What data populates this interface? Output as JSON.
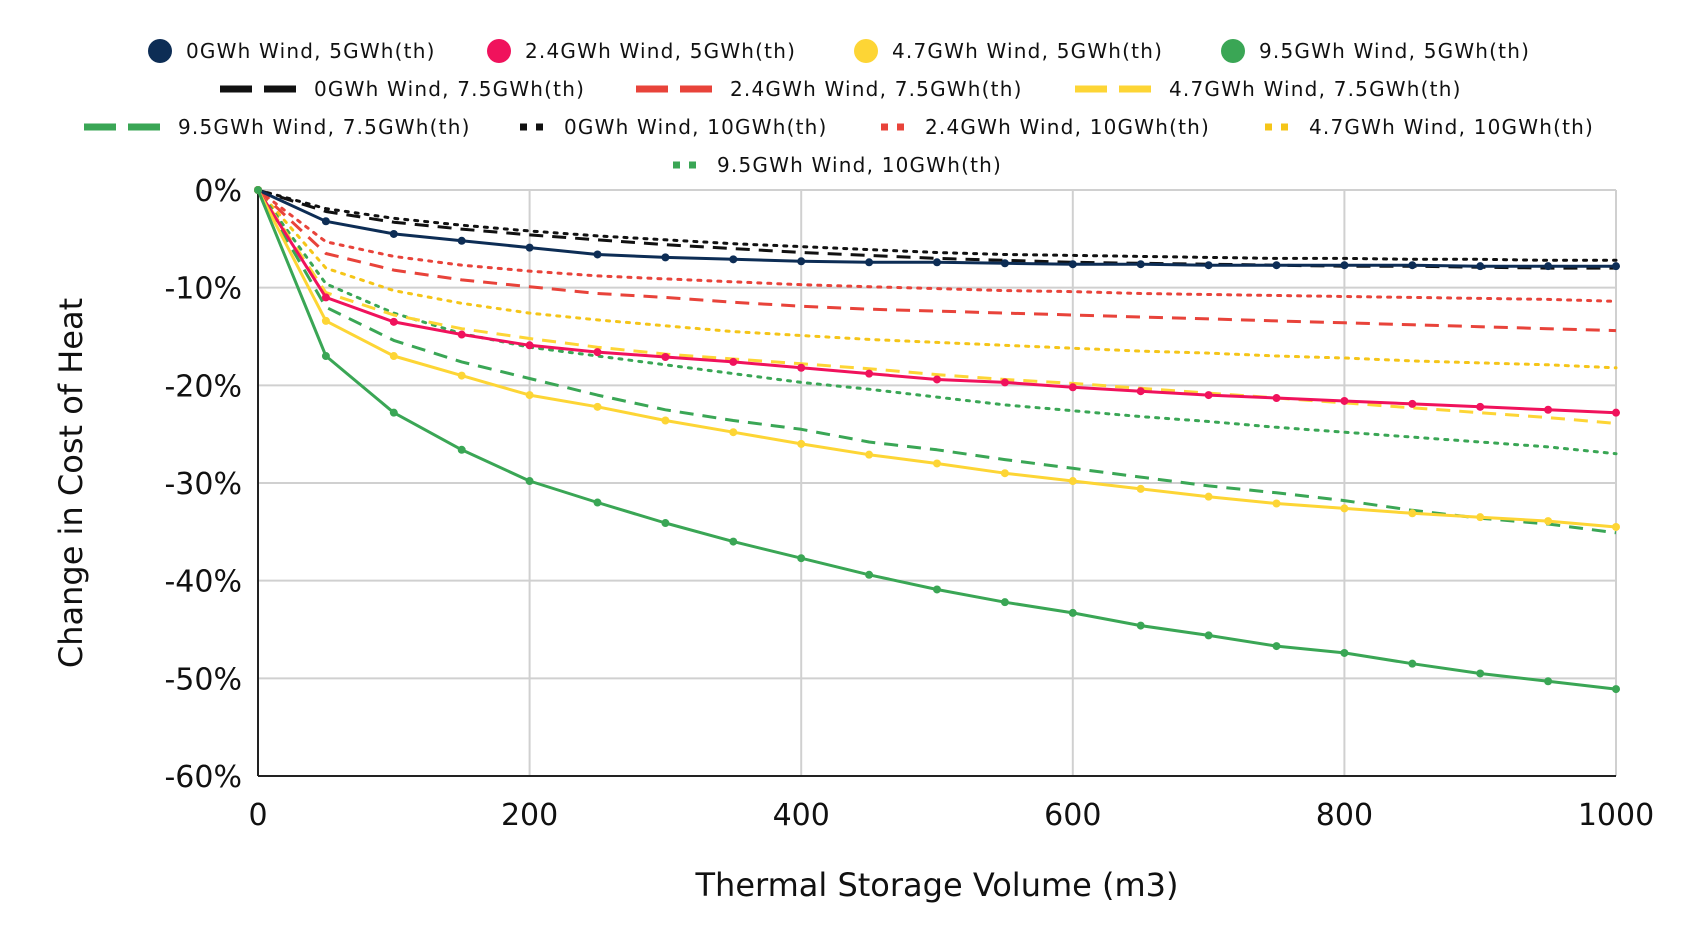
{
  "chart_data": {
    "type": "line",
    "title": "",
    "xlabel": "Thermal Storage Volume (m3)",
    "ylabel": "Change in Cost of Heat",
    "xlim": [
      0,
      1000
    ],
    "ylim": [
      -60,
      0
    ],
    "x_ticks": [
      0,
      200,
      400,
      600,
      800,
      1000
    ],
    "x_tick_labels": [
      "0",
      "200",
      "400",
      "600",
      "800",
      "1000"
    ],
    "y_ticks": [
      0,
      -10,
      -20,
      -30,
      -40,
      -50,
      -60
    ],
    "y_tick_labels": [
      "0%",
      "-10%",
      "-20%",
      "-30%",
      "-40%",
      "-50%",
      "-60%"
    ],
    "grid": true,
    "legend_position": "top",
    "x": [
      0,
      50,
      100,
      150,
      200,
      250,
      300,
      350,
      400,
      450,
      500,
      550,
      600,
      650,
      700,
      750,
      800,
      850,
      900,
      950,
      1000
    ],
    "series": [
      {
        "name": "0GWh Wind, 5GWh(th)",
        "color": "#0d2d55",
        "style": "solid-markers",
        "values": [
          0,
          -3.2,
          -4.5,
          -5.2,
          -5.9,
          -6.6,
          -6.9,
          -7.1,
          -7.3,
          -7.4,
          -7.4,
          -7.5,
          -7.6,
          -7.6,
          -7.7,
          -7.7,
          -7.7,
          -7.7,
          -7.8,
          -7.8,
          -7.8
        ]
      },
      {
        "name": "2.4GWh Wind, 5GWh(th)",
        "color": "#f0125c",
        "style": "solid-markers",
        "values": [
          0,
          -11.0,
          -13.5,
          -14.8,
          -15.9,
          -16.6,
          -17.1,
          -17.6,
          -18.2,
          -18.8,
          -19.4,
          -19.7,
          -20.2,
          -20.6,
          -21.0,
          -21.3,
          -21.6,
          -21.9,
          -22.2,
          -22.5,
          -22.8
        ]
      },
      {
        "name": "4.7GWh Wind, 5GWh(th)",
        "color": "#fdd535",
        "style": "solid-markers",
        "values": [
          0,
          -13.4,
          -17.0,
          -19.0,
          -21.0,
          -22.2,
          -23.6,
          -24.8,
          -26.0,
          -27.1,
          -28.0,
          -29.0,
          -29.8,
          -30.6,
          -31.4,
          -32.1,
          -32.6,
          -33.1,
          -33.5,
          -33.9,
          -34.5
        ]
      },
      {
        "name": "9.5GWh Wind, 5GWh(th)",
        "color": "#3aa655",
        "style": "solid-markers",
        "values": [
          0,
          -17.0,
          -22.8,
          -26.6,
          -29.8,
          -32.0,
          -34.1,
          -36.0,
          -37.7,
          -39.4,
          -40.9,
          -42.2,
          -43.3,
          -44.6,
          -45.6,
          -46.7,
          -47.4,
          -48.5,
          -49.5,
          -50.3,
          -51.1
        ]
      },
      {
        "name": "0GWh Wind, 7.5GWh(th)",
        "color": "#111111",
        "style": "dash",
        "values": [
          0,
          -2.2,
          -3.3,
          -4.0,
          -4.6,
          -5.1,
          -5.6,
          -6.0,
          -6.4,
          -6.7,
          -7.0,
          -7.2,
          -7.4,
          -7.5,
          -7.6,
          -7.7,
          -7.8,
          -7.8,
          -7.9,
          -8.0,
          -8.0
        ]
      },
      {
        "name": "2.4GWh Wind, 7.5GWh(th)",
        "color": "#e8433a",
        "style": "dash",
        "values": [
          0,
          -6.5,
          -8.2,
          -9.2,
          -9.9,
          -10.6,
          -11.0,
          -11.5,
          -11.9,
          -12.2,
          -12.4,
          -12.6,
          -12.8,
          -13.0,
          -13.2,
          -13.4,
          -13.6,
          -13.8,
          -14.0,
          -14.2,
          -14.4
        ]
      },
      {
        "name": "4.7GWh Wind, 7.5GWh(th)",
        "color": "#fdd535",
        "style": "dash",
        "values": [
          0,
          -10.5,
          -12.8,
          -14.2,
          -15.2,
          -16.1,
          -16.8,
          -17.3,
          -17.8,
          -18.3,
          -18.9,
          -19.4,
          -19.8,
          -20.3,
          -20.8,
          -21.3,
          -21.8,
          -22.3,
          -22.8,
          -23.3,
          -23.9
        ]
      },
      {
        "name": "9.5GWh Wind, 7.5GWh(th)",
        "color": "#3aa655",
        "style": "dash",
        "values": [
          0,
          -12.0,
          -15.4,
          -17.6,
          -19.3,
          -21.0,
          -22.5,
          -23.6,
          -24.5,
          -25.8,
          -26.6,
          -27.6,
          -28.5,
          -29.4,
          -30.3,
          -31.0,
          -31.8,
          -32.8,
          -33.6,
          -34.2,
          -35.1
        ]
      },
      {
        "name": "0GWh Wind, 10GWh(th)",
        "color": "#111111",
        "style": "dot",
        "values": [
          0,
          -1.9,
          -2.9,
          -3.6,
          -4.2,
          -4.7,
          -5.1,
          -5.5,
          -5.8,
          -6.1,
          -6.4,
          -6.6,
          -6.7,
          -6.8,
          -6.9,
          -7.0,
          -7.0,
          -7.1,
          -7.1,
          -7.2,
          -7.2
        ]
      },
      {
        "name": "2.4GWh Wind, 10GWh(th)",
        "color": "#e8433a",
        "style": "dot",
        "values": [
          0,
          -5.3,
          -6.8,
          -7.7,
          -8.3,
          -8.8,
          -9.1,
          -9.4,
          -9.7,
          -9.9,
          -10.1,
          -10.3,
          -10.4,
          -10.6,
          -10.7,
          -10.8,
          -10.9,
          -11.0,
          -11.1,
          -11.2,
          -11.4
        ]
      },
      {
        "name": "4.7GWh Wind, 10GWh(th)",
        "color": "#f5c518",
        "style": "dot",
        "values": [
          0,
          -8.0,
          -10.3,
          -11.6,
          -12.6,
          -13.3,
          -13.9,
          -14.5,
          -14.9,
          -15.3,
          -15.6,
          -15.9,
          -16.2,
          -16.5,
          -16.7,
          -17.0,
          -17.2,
          -17.5,
          -17.7,
          -17.9,
          -18.2
        ]
      },
      {
        "name": "9.5GWh Wind, 10GWh(th)",
        "color": "#3aa655",
        "style": "dot",
        "values": [
          0,
          -9.6,
          -12.6,
          -14.7,
          -16.1,
          -17.0,
          -17.9,
          -18.8,
          -19.7,
          -20.4,
          -21.2,
          -22.0,
          -22.6,
          -23.2,
          -23.7,
          -24.3,
          -24.8,
          -25.3,
          -25.8,
          -26.3,
          -27.0
        ]
      }
    ]
  }
}
